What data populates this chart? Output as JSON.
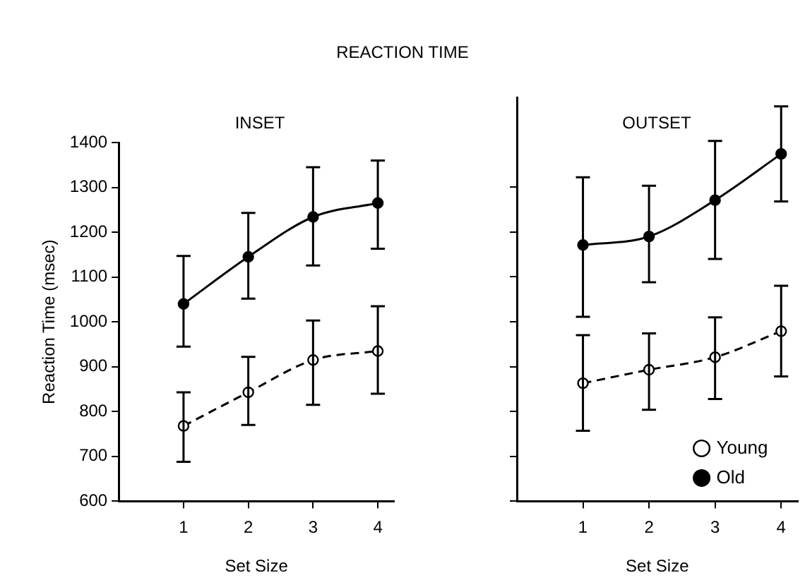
{
  "chart_data": [
    {
      "type": "line",
      "title": "INSET",
      "annotations": [
        "REACTION TIME"
      ],
      "xlabel": "Set Size",
      "ylabel": "Reaction Time (msec)",
      "categories": [
        "1",
        "2",
        "3",
        "4"
      ],
      "ylim": [
        600,
        1400
      ],
      "yticks": [
        600,
        700,
        800,
        900,
        1000,
        1100,
        1200,
        1300,
        1400
      ],
      "grid": false,
      "legend": false,
      "marker": "circle",
      "series": [
        {
          "color": "#000000",
          "line_style": "dashed",
          "values": [
            768,
            843,
            915,
            935
          ],
          "errors": [
            [
              688,
              843
            ],
            [
              770,
              922
            ],
            [
              815,
              1003
            ],
            [
              840,
              1035
            ]
          ]
        },
        {
          "color": "#000000",
          "line_style": "solid",
          "values": [
            1040,
            1145,
            1234,
            1265
          ],
          "errors": [
            [
              945,
              1147
            ],
            [
              1052,
              1243
            ],
            [
              1126,
              1345
            ],
            [
              1163,
              1360
            ]
          ]
        }
      ]
    },
    {
      "type": "line",
      "title": "OUTSET",
      "xlabel": "Set Size",
      "categories": [
        "1",
        "2",
        "3",
        "4"
      ],
      "ylim": [
        600,
        1500
      ],
      "yticks": [
        600,
        700,
        800,
        900,
        1000,
        1100,
        1200,
        1300
      ],
      "tick_labels": "x",
      "grid": false,
      "legend": "bottom right",
      "marker": "circle",
      "series": [
        {
          "name": "Young",
          "color": "#000000",
          "line_style": "dashed",
          "values": [
            863,
            893,
            921,
            979
          ],
          "errors": [
            [
              757,
              970
            ],
            [
              804,
              974
            ],
            [
              828,
              1010
            ],
            [
              878,
              1080
            ]
          ]
        },
        {
          "name": "Old",
          "color": "#000000",
          "line_style": "solid",
          "values": [
            1171,
            1190,
            1271,
            1374
          ],
          "errors": [
            [
              1011,
              1322
            ],
            [
              1088,
              1303
            ],
            [
              1140,
              1403
            ],
            [
              1268,
              1480
            ]
          ]
        }
      ]
    }
  ]
}
